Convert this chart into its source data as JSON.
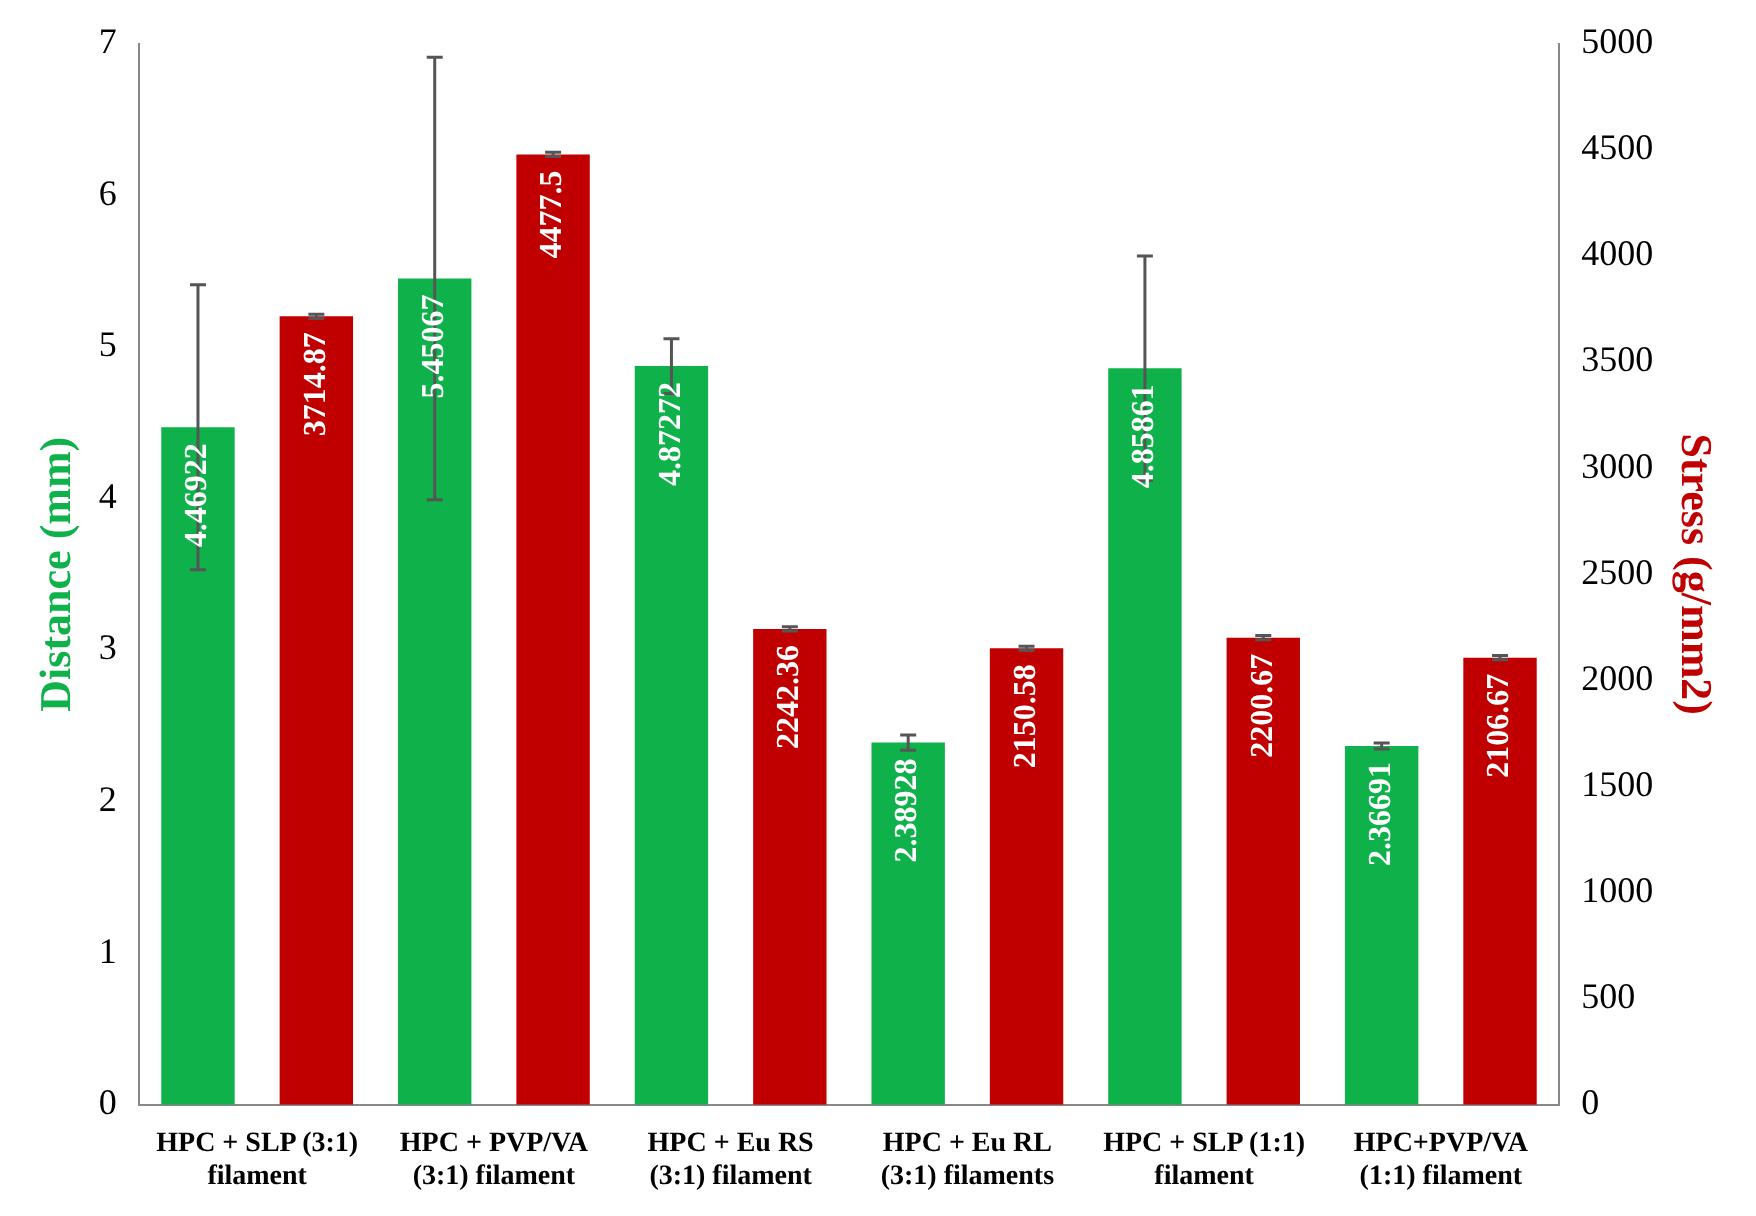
{
  "chart_data": {
    "type": "bar",
    "categories": [
      "HPC + SLP (3:1) filament",
      "HPC + PVP/VA (3:1) filament",
      "HPC + Eu RS (3:1) filament",
      "HPC + Eu RL (3:1) filaments",
      "HPC + SLP (1:1) filament",
      "HPC+PVP/VA (1:1) filament"
    ],
    "series": [
      {
        "color": "#0fb14b",
        "values": [
          4.46922,
          5.45067,
          4.87272,
          2.38928,
          4.85861,
          2.36691
        ],
        "errors": [
          0.94,
          1.46,
          0.18,
          0.05,
          0.74,
          0.02
        ]
      },
      {
        "color": "#c00000",
        "axis": "y2",
        "values": [
          3714.87,
          4477.5,
          2242.36,
          2150.58,
          2200.67,
          2106.67
        ],
        "errors": [
          10,
          10,
          10,
          10,
          10,
          10
        ]
      }
    ],
    "ylabel": "Distance (mm)",
    "y2label": "Stress (g/mm2)",
    "ylim": [
      0,
      7
    ],
    "yticks": [
      0,
      1,
      2,
      3,
      4,
      5,
      6,
      7
    ],
    "y2lim": [
      0,
      5000
    ],
    "y2ticks": [
      0,
      500,
      1000,
      1500,
      2000,
      2500,
      3000,
      3500,
      4000,
      4500,
      5000
    ],
    "data_labels": true,
    "grid": false,
    "legend": false
  }
}
